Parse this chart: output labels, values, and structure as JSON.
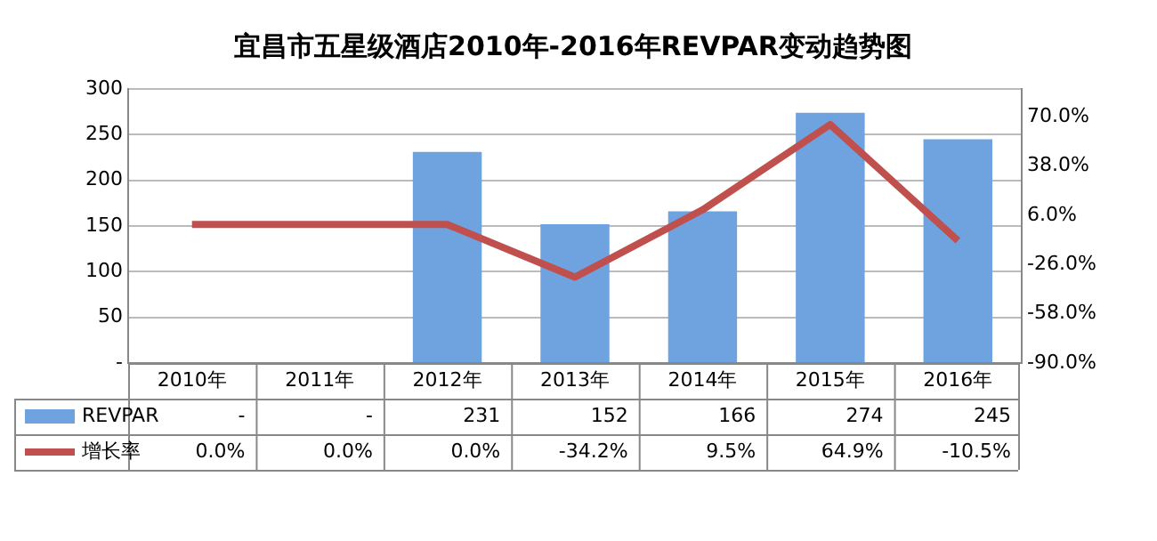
{
  "chart_data": {
    "type": "bar",
    "title": "宜昌市五星级酒店2010年-2016年REVPAR变动趋势图",
    "categories": [
      "2010年",
      "2011年",
      "2012年",
      "2013年",
      "2014年",
      "2015年",
      "2016年"
    ],
    "series": [
      {
        "name": "REVPAR",
        "color": "#6fa3e0",
        "values": [
          null,
          null,
          231,
          152,
          166,
          274,
          245
        ],
        "value_labels": [
          "-",
          "-",
          "231",
          "152",
          "166",
          "274",
          "245"
        ]
      },
      {
        "name": "增长率",
        "type": "line",
        "axis": "y2",
        "color": "#c0504d",
        "values": [
          0,
          0,
          0,
          -34.2,
          9.5,
          64.9,
          -10.5
        ],
        "value_labels": [
          "0.0%",
          "0.0%",
          "0.0%",
          "-34.2%",
          "9.5%",
          "64.9%",
          "-10.5%"
        ]
      }
    ],
    "ylim": [
      0,
      300
    ],
    "yticks": [
      {
        "value": 0,
        "label": "-"
      },
      50,
      100,
      150,
      200,
      250,
      300
    ],
    "y2lim": [
      -90,
      88
    ],
    "y2ticks": [
      {
        "value": -90,
        "label": "-90.0%"
      },
      {
        "value": -58,
        "label": "-58.0%"
      },
      {
        "value": -26,
        "label": "-26.0%"
      },
      {
        "value": 6,
        "label": "6.0%"
      },
      {
        "value": 38,
        "label": "38.0%"
      },
      {
        "value": 70,
        "label": "70.0%"
      }
    ],
    "grid": "y",
    "legend": "bottom",
    "marker": "none"
  }
}
